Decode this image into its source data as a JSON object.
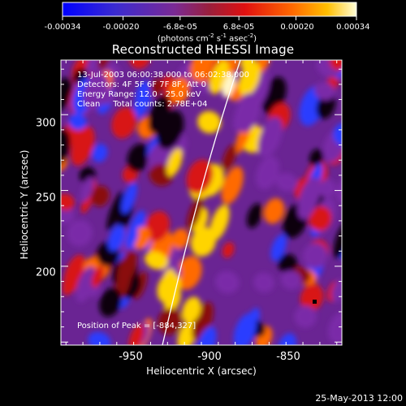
{
  "colorbar": {
    "tick_labels": [
      "-0.00034",
      "-0.00020",
      "-6.8e-05",
      "6.8e-05",
      "0.00020",
      "0.00034"
    ],
    "units": "(photons cm^-2 s^-1 asec^-2)",
    "range": [
      -0.00034,
      0.00034
    ]
  },
  "title": "Reconstructed RHESSI Image",
  "info": {
    "line1": "13-Jul-2003 06:00:38.000 to 06:02:38.000",
    "line2": "Detectors: 4F 5F 6F 7F 8F, Att 0",
    "line3": "Energy Range: 12.0 - 25.0 keV",
    "line4": "Clean     Total counts: 2.78E+04"
  },
  "peak_label": "Position of Peak = [-884,327]",
  "axes": {
    "xlabel": "Heliocentric X (arcsec)",
    "ylabel": "Heliocentric Y (arcsec)",
    "x_ticks": [
      "-950",
      "-900",
      "-850"
    ],
    "y_ticks": [
      "300",
      "250",
      "200"
    ]
  },
  "footer": {
    "date": "25-May-2013 12:00"
  },
  "chart_data": {
    "type": "heatmap",
    "title": "Reconstructed RHESSI Image",
    "xlabel": "Heliocentric X (arcsec)",
    "ylabel": "Heliocentric Y (arcsec)",
    "x_ticks": [
      -950,
      -900,
      -850
    ],
    "y_ticks": [
      300,
      250,
      200
    ],
    "xlim": [
      -978,
      -812
    ],
    "ylim": [
      148,
      336
    ],
    "colorbar_ticks": [
      -0.00034,
      -0.0002,
      -6.8e-05,
      6.8e-05,
      0.0002,
      0.00034
    ],
    "peak": [
      -884,
      327
    ],
    "colors": {
      "low": "#1a1aff",
      "mid": "#8a2a8a",
      "high": "#ff3000",
      "top": "#ffffe0",
      "axes": "#ffffff",
      "limb": "#ffffff"
    }
  }
}
